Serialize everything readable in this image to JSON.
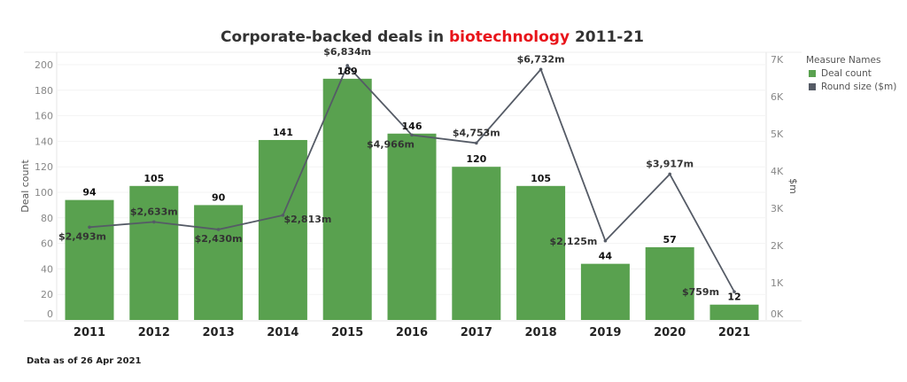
{
  "title": {
    "prefix": "Corporate-backed deals in ",
    "highlight": "biotechnology",
    "suffix": " 2011-21",
    "highlight_color": "#e8141a"
  },
  "footnote": "Data as of 26 Apr 2021",
  "legend": {
    "title": "Measure Names",
    "items": [
      {
        "label": "Deal count",
        "color": "#59a14f"
      },
      {
        "label": "Round size ($m)",
        "color": "#555b66"
      }
    ]
  },
  "chart_data": {
    "type": "bar+line",
    "title": "Corporate-backed deals in biotechnology 2011-21",
    "categories": [
      "2011",
      "2012",
      "2013",
      "2014",
      "2015",
      "2016",
      "2017",
      "2018",
      "2019",
      "2020",
      "2021"
    ],
    "series": [
      {
        "name": "Deal count",
        "type": "bar",
        "axis": "left",
        "color": "#59a14f",
        "values": [
          94,
          105,
          90,
          141,
          189,
          146,
          120,
          105,
          44,
          57,
          12
        ],
        "labels": [
          "94",
          "105",
          "90",
          "141",
          "189",
          "146",
          "120",
          "105",
          "44",
          "57",
          "12"
        ]
      },
      {
        "name": "Round size ($m)",
        "type": "line",
        "axis": "right",
        "color": "#555b66",
        "values": [
          2493,
          2633,
          2430,
          2813,
          6834,
          4966,
          4753,
          6732,
          2125,
          3917,
          759
        ],
        "labels": [
          "$2,493m",
          "$2,633m",
          "$2,430m",
          "$2,813m",
          "$6,834m",
          "$4,966m",
          "$4,753m",
          "$6,732m",
          "$2,125m",
          "$3,917m",
          "$759m"
        ]
      }
    ],
    "ylabel": "Deal count",
    "ylim": [
      0,
      200
    ],
    "yticks": [
      "0",
      "20",
      "40",
      "60",
      "80",
      "100",
      "120",
      "140",
      "160",
      "180",
      "200"
    ],
    "y2label": "$m",
    "y2lim": [
      0,
      7000
    ],
    "y2ticks": [
      "0K",
      "1K",
      "2K",
      "3K",
      "4K",
      "5K",
      "6K",
      "7K"
    ],
    "grid": true,
    "legend_position": "right"
  }
}
